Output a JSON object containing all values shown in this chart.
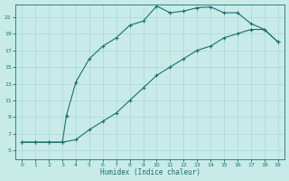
{
  "upper_x": [
    0,
    1,
    2,
    3,
    3.3,
    4,
    5,
    6,
    7,
    8,
    9,
    10,
    11,
    12,
    13,
    14,
    15,
    16,
    17,
    18,
    19
  ],
  "upper_y": [
    6,
    6,
    6,
    6,
    9.2,
    13.2,
    16.0,
    17.5,
    18.5,
    20.0,
    20.5,
    22.3,
    21.5,
    21.7,
    22.1,
    22.2,
    21.5,
    21.5,
    20.2,
    19.5,
    18.0
  ],
  "lower_x": [
    0,
    1,
    2,
    3,
    4,
    5,
    6,
    7,
    8,
    9,
    10,
    11,
    12,
    13,
    14,
    15,
    16,
    17,
    18,
    19
  ],
  "lower_y": [
    6,
    6,
    6,
    6,
    6.3,
    7.5,
    8.5,
    9.5,
    11.0,
    12.5,
    14.0,
    15.0,
    16.0,
    17.0,
    17.5,
    18.5,
    19.0,
    19.5,
    19.5,
    18.0
  ],
  "color": "#1a7070",
  "bg_color": "#c8ebe8",
  "grid_color": "#aad8d3",
  "xlabel": "Humidex (Indice chaleur)",
  "xlim": [
    -0.5,
    19.5
  ],
  "ylim": [
    4,
    22.5
  ],
  "xticks": [
    0,
    1,
    2,
    3,
    4,
    5,
    6,
    7,
    8,
    9,
    10,
    11,
    12,
    13,
    14,
    15,
    16,
    17,
    18,
    19
  ],
  "yticks": [
    5,
    7,
    9,
    11,
    13,
    15,
    17,
    19,
    21
  ],
  "marker": "+",
  "markersize": 3,
  "linewidth": 0.8
}
